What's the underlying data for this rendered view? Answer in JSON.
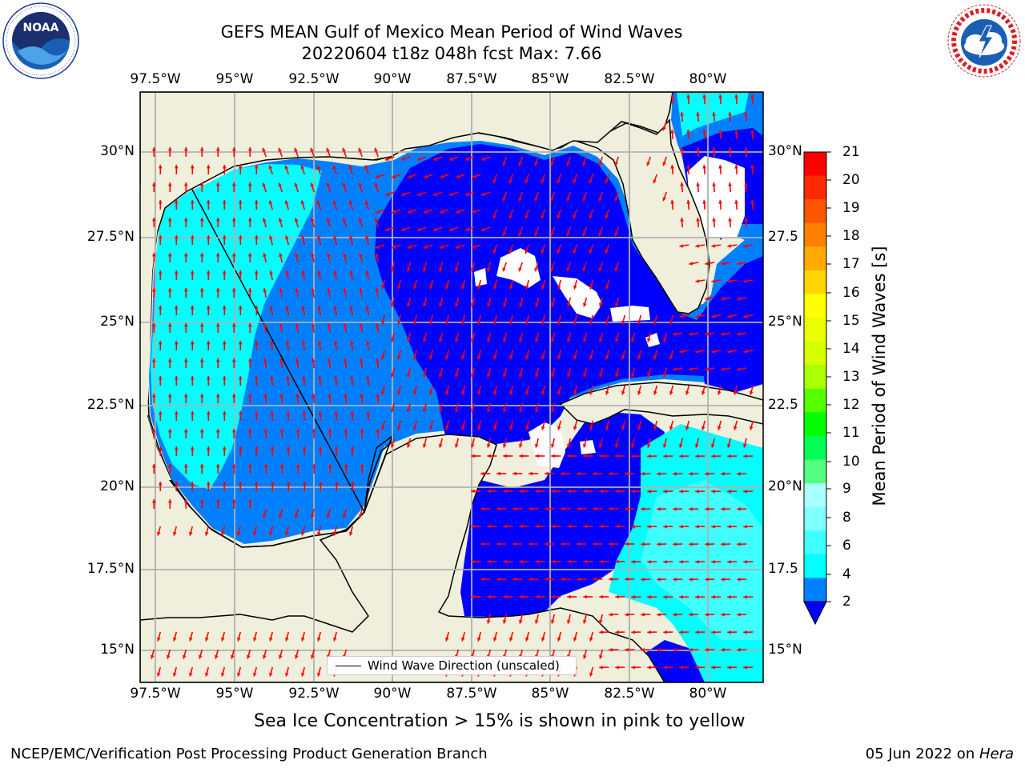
{
  "title": {
    "line1": "GEFS MEAN Gulf of Mexico Mean Period of Wind Waves",
    "line2": "20220604 t18z 048h fcst   Max: 7.66"
  },
  "logos": {
    "left": {
      "name": "NOAA",
      "text": "NOAA",
      "ring_text": "NATIONAL OCEANIC AND ATMOSPHERIC ADMINISTRATION · U.S. DEPARTMENT OF COMMERCE"
    },
    "right": {
      "name": "National Weather Service",
      "ring_text": "NATIONAL WEATHER SERVICE"
    }
  },
  "map": {
    "lon_ticks": [
      "97.5°W",
      "95°W",
      "92.5°W",
      "90°W",
      "87.5°W",
      "85°W",
      "82.5°W",
      "80°W"
    ],
    "lat_ticks_left": [
      "30°N",
      "27.5°N",
      "25°N",
      "22.5°N",
      "20°N",
      "17.5°N",
      "15°N"
    ],
    "lat_ticks_right": [
      "30°N",
      "27.5",
      "25°N",
      "22.5",
      "20°N",
      "17.5",
      "15°N"
    ],
    "land_color": "#efefdc",
    "arrow_color": "#ff0000",
    "legend_label": "Wind Wave Direction (unscaled)"
  },
  "colorbar": {
    "label": "Mean Period of Wind Waves [s]",
    "ticks": [
      "21",
      "20",
      "19",
      "18",
      "17",
      "16",
      "15",
      "14",
      "13",
      "12",
      "11",
      "10",
      "9",
      "8",
      "6",
      "4",
      "2"
    ],
    "colors_top_to_bottom": [
      "#ff0000",
      "#ff2a00",
      "#ff5500",
      "#ff8000",
      "#ffaa00",
      "#ffd500",
      "#ffff00",
      "#eaff00",
      "#d4ff00",
      "#aaff00",
      "#55ff00",
      "#00ff00",
      "#00ff55",
      "#55ff80",
      "#aaffff",
      "#80ffff",
      "#40ffff",
      "#00ffff",
      "#0080ff"
    ],
    "extend_color": "#0000ff"
  },
  "footer": {
    "note": "Sea Ice Concentration > 15% is shown in pink to yellow",
    "credit": "NCEP/EMC/Verification Post Processing Product Generation Branch",
    "date": "05 Jun 2022 on ",
    "machine": "Hera"
  }
}
